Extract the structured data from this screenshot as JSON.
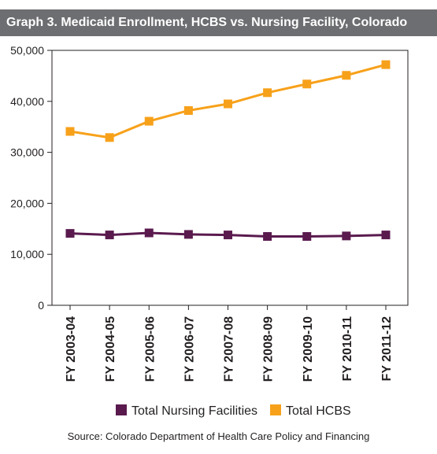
{
  "header": {
    "title": "Graph 3. Medicaid Enrollment, HCBS vs. Nursing Facility, Colorado"
  },
  "chart_data": {
    "type": "line",
    "title": "Graph 3. Medicaid Enrollment, HCBS vs. Nursing Facility, Colorado",
    "categories": [
      "FY 2003-04",
      "FY 2004-05",
      "FY 2005-06",
      "FY 2006-07",
      "FY 2007-08",
      "FY 2008-09",
      "FY 2009-10",
      "FY 2010-11",
      "FY 2011-12"
    ],
    "series": [
      {
        "name": "Total Nursing Facilities",
        "color": "#5a1a4e",
        "marker": "square",
        "values": [
          14100,
          13800,
          14200,
          13900,
          13800,
          13500,
          13500,
          13600,
          13800
        ]
      },
      {
        "name": "Total HCBS",
        "color": "#f7a11a",
        "marker": "square",
        "values": [
          34100,
          32900,
          36100,
          38200,
          39500,
          41700,
          43400,
          45100,
          47200
        ]
      }
    ],
    "ylim": [
      0,
      50000
    ],
    "yticks": [
      0,
      10000,
      20000,
      30000,
      40000,
      50000
    ],
    "ytick_labels": [
      "0",
      "10,000",
      "20,000",
      "30,000",
      "40,000",
      "50,000"
    ],
    "xlabel": "",
    "ylabel": "",
    "grid": false,
    "legend_position": "bottom-center"
  },
  "source": "Source: Colorado Department of Health Care Policy and Financing"
}
